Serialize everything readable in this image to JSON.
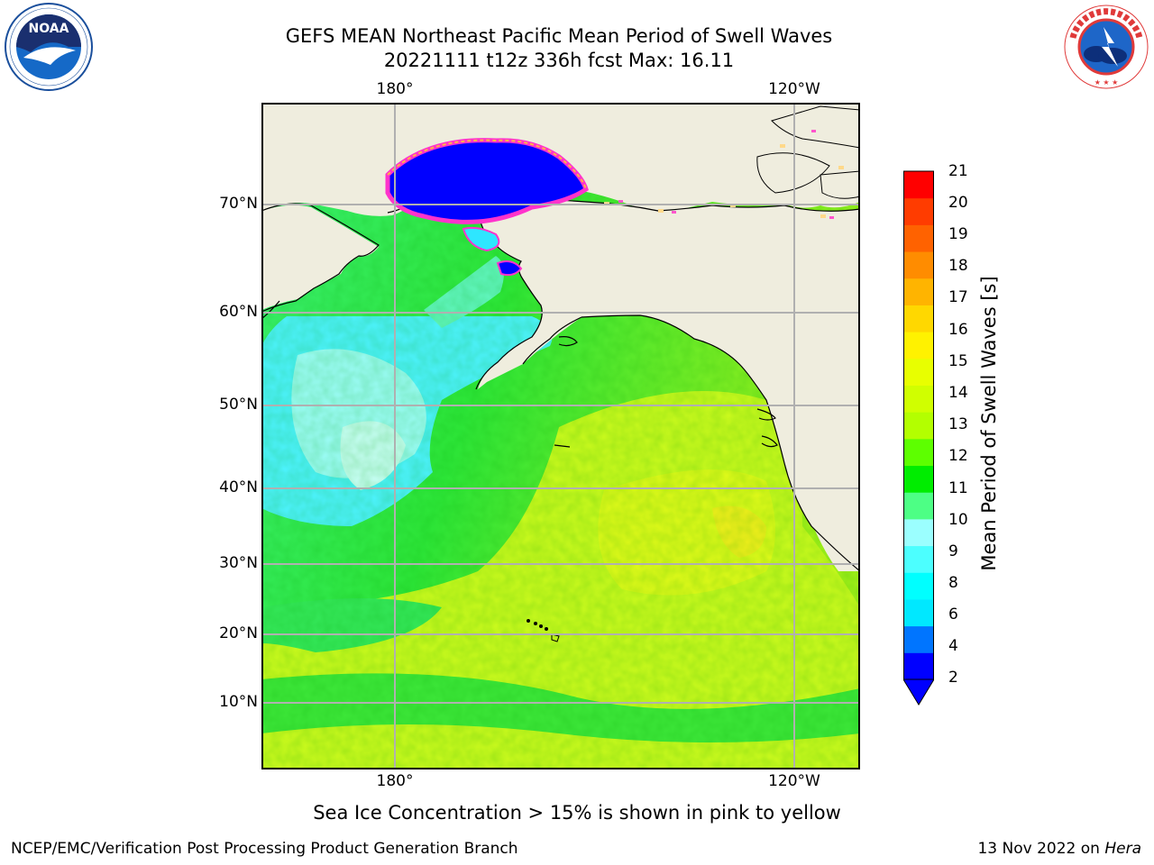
{
  "title": {
    "line1": "GEFS MEAN Northeast Pacific Mean Period of Swell Waves",
    "line2": "20221111 t12z 336h fcst   Max: 16.11"
  },
  "logos": {
    "left": {
      "icon": "noaa-logo",
      "text": "NOAA",
      "ring_text": "NATIONAL OCEANIC AND ATMOSPHERIC ADMINISTRATION · U.S. DEPARTMENT OF COMMERCE"
    },
    "right": {
      "icon": "national-weather-service-logo",
      "ring_text": "NATIONAL WEATHER SERVICE"
    }
  },
  "map": {
    "lon_labels_top": [
      "180°",
      "120°W"
    ],
    "lon_labels_bottom": [
      "180°",
      "120°W"
    ],
    "lat_labels": [
      "70°N",
      "60°N",
      "50°N",
      "40°N",
      "30°N",
      "20°N",
      "10°N"
    ],
    "colors": {
      "land": "#efedde",
      "grid": "#b0b0b0"
    }
  },
  "colorbar": {
    "label": "Mean Period of Swell Waves [s]",
    "ticks": [
      "21",
      "20",
      "19",
      "18",
      "17",
      "16",
      "15",
      "14",
      "13",
      "12",
      "11",
      "10",
      "9",
      "8",
      "6",
      "4",
      "2"
    ],
    "colors": [
      "#0000ff",
      "#0075ff",
      "#00e8ff",
      "#00ffff",
      "#4cffff",
      "#9bffff",
      "#4dff85",
      "#00ed00",
      "#5dff00",
      "#b3ff00",
      "#d0ff00",
      "#e8ff00",
      "#fff200",
      "#ffd800",
      "#ffb400",
      "#ff8c00",
      "#ff6200",
      "#ff3c00",
      "#ff0000"
    ],
    "extend_color": "#0000ff"
  },
  "ice_note": "Sea Ice Concentration > 15% is shown in pink to yellow",
  "footer": {
    "left": "NCEP/EMC/Verification Post Processing Product Generation Branch",
    "right_date": "13 Nov 2022 on",
    "right_host": "Hera"
  }
}
